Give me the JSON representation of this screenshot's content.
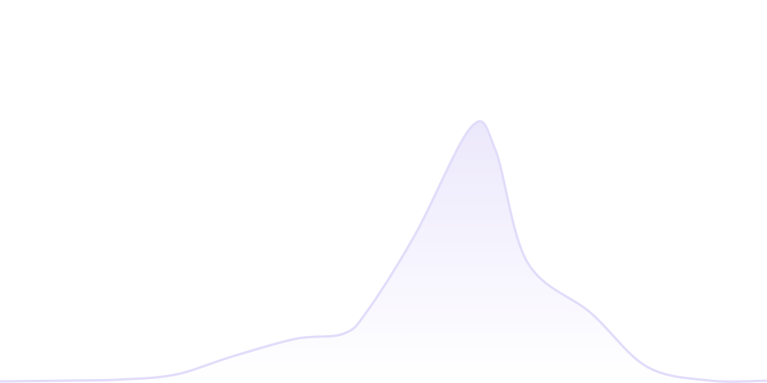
{
  "chart_data": {
    "type": "area",
    "title": "",
    "xlabel": "",
    "ylabel": "",
    "grid": false,
    "xlim": [
      0,
      96
    ],
    "ylim": [
      0,
      150
    ],
    "x": [
      0,
      8,
      15,
      22,
      29,
      37,
      43,
      46,
      52,
      59,
      62,
      66,
      74,
      81,
      89,
      96
    ],
    "series": [
      {
        "values": [
          0.3,
          0.6,
          1,
          3,
          10,
          17,
          19,
          28,
          58,
          100,
          91,
          47,
          27,
          6,
          0.6,
          0.6
        ]
      }
    ],
    "colors": {
      "stroke": "#e2dcfa",
      "fill_top": "#ece8fc",
      "fill_bottom": "#ffffff"
    }
  }
}
